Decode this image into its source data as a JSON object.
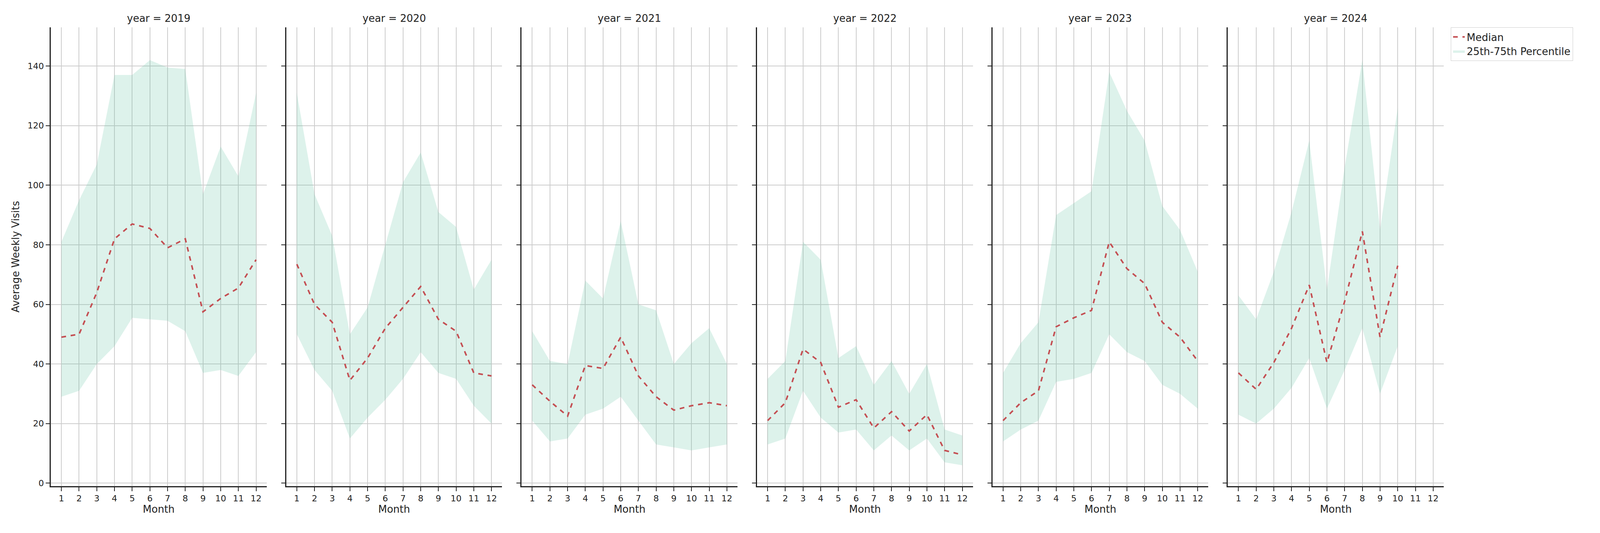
{
  "chart_data": [
    {
      "type": "line",
      "title": "year = 2019",
      "x_label": "Month",
      "y_label": "Average Weekly Visits",
      "x": [
        1,
        2,
        3,
        4,
        5,
        6,
        7,
        8,
        9,
        10,
        11,
        12
      ],
      "xlim": [
        0.4,
        12.6
      ],
      "xticks": [
        1,
        2,
        3,
        4,
        5,
        6,
        7,
        8,
        9,
        10,
        11,
        12
      ],
      "ylim": [
        -1,
        153
      ],
      "yticks": [
        0,
        20,
        40,
        60,
        80,
        100,
        120,
        140
      ],
      "grid": true,
      "series": [
        {
          "name": "Median",
          "color": "#c44e52",
          "line_style": "dashed",
          "values": [
            49,
            50,
            64,
            82,
            87,
            85.5,
            79,
            82,
            57.5,
            62,
            65.5,
            75
          ]
        },
        {
          "name": "25th-75th Percentile",
          "type": "area",
          "color": "#66c2a5",
          "lower": [
            29,
            31,
            40,
            46,
            55.5,
            55,
            54.5,
            51,
            37,
            38,
            36,
            44
          ],
          "upper": [
            81,
            95,
            107,
            137,
            137,
            142,
            139.5,
            139,
            97,
            113,
            103,
            131
          ]
        }
      ]
    },
    {
      "type": "line",
      "title": "year = 2020",
      "x_label": "Month",
      "x": [
        1,
        2,
        3,
        4,
        5,
        6,
        7,
        8,
        9,
        10,
        11,
        12
      ],
      "xlim": [
        0.4,
        12.6
      ],
      "xticks": [
        1,
        2,
        3,
        4,
        5,
        6,
        7,
        8,
        9,
        10,
        11,
        12
      ],
      "ylim": [
        -1,
        153
      ],
      "yticks": [
        0,
        20,
        40,
        60,
        80,
        100,
        120,
        140
      ],
      "grid": true,
      "tick_labels": "x",
      "series": [
        {
          "name": "Median",
          "color": "#c44e52",
          "line_style": "dashed",
          "values": [
            73.5,
            60,
            54,
            34.5,
            42,
            52,
            59,
            66,
            55,
            51,
            37,
            36
          ]
        },
        {
          "name": "25th-75th Percentile",
          "type": "area",
          "color": "#66c2a5",
          "lower": [
            50,
            38,
            31,
            15,
            22,
            28,
            35,
            44,
            37,
            35,
            26,
            20
          ],
          "upper": [
            131,
            97,
            83,
            50,
            59,
            80,
            101,
            111,
            91,
            86,
            65,
            75
          ]
        }
      ]
    },
    {
      "type": "line",
      "title": "year = 2021",
      "x_label": "Month",
      "x": [
        1,
        2,
        3,
        4,
        5,
        6,
        7,
        8,
        9,
        10,
        11,
        12
      ],
      "xlim": [
        0.4,
        12.6
      ],
      "xticks": [
        1,
        2,
        3,
        4,
        5,
        6,
        7,
        8,
        9,
        10,
        11,
        12
      ],
      "ylim": [
        -1,
        153
      ],
      "yticks": [
        0,
        20,
        40,
        60,
        80,
        100,
        120,
        140
      ],
      "grid": true,
      "tick_labels": "x",
      "series": [
        {
          "name": "Median",
          "color": "#c44e52",
          "line_style": "dashed",
          "values": [
            33,
            27.5,
            22.5,
            39.5,
            38.5,
            49,
            36,
            29,
            24.5,
            26,
            27,
            26
          ]
        },
        {
          "name": "25th-75th Percentile",
          "type": "area",
          "color": "#66c2a5",
          "lower": [
            21,
            14,
            15,
            23,
            25,
            29,
            21,
            13,
            12,
            11,
            12,
            13
          ],
          "upper": [
            51,
            41,
            40,
            68,
            62,
            88,
            60,
            58,
            40,
            47,
            52,
            40
          ]
        }
      ]
    },
    {
      "type": "line",
      "title": "year = 2022",
      "x_label": "Month",
      "x": [
        1,
        2,
        3,
        4,
        5,
        6,
        7,
        8,
        9,
        10,
        11,
        12
      ],
      "xlim": [
        0.4,
        12.6
      ],
      "xticks": [
        1,
        2,
        3,
        4,
        5,
        6,
        7,
        8,
        9,
        10,
        11,
        12
      ],
      "ylim": [
        -1,
        153
      ],
      "yticks": [
        0,
        20,
        40,
        60,
        80,
        100,
        120,
        140
      ],
      "grid": true,
      "tick_labels": "x",
      "series": [
        {
          "name": "Median",
          "color": "#c44e52",
          "line_style": "dashed",
          "values": [
            21,
            27,
            45,
            40.5,
            25.5,
            28,
            18.5,
            24,
            17.5,
            23,
            11,
            9.5
          ]
        },
        {
          "name": "25th-75th Percentile",
          "type": "area",
          "color": "#66c2a5",
          "lower": [
            13,
            15,
            31,
            22,
            17,
            18,
            11,
            16,
            11,
            15,
            7,
            6
          ],
          "upper": [
            35,
            41,
            81,
            75,
            42,
            46,
            33,
            41,
            30,
            40,
            18,
            16
          ]
        }
      ]
    },
    {
      "type": "line",
      "title": "year = 2023",
      "x_label": "Month",
      "x": [
        1,
        2,
        3,
        4,
        5,
        6,
        7,
        8,
        9,
        10,
        11,
        12
      ],
      "xlim": [
        0.4,
        12.6
      ],
      "xticks": [
        1,
        2,
        3,
        4,
        5,
        6,
        7,
        8,
        9,
        10,
        11,
        12
      ],
      "ylim": [
        -1,
        153
      ],
      "yticks": [
        0,
        20,
        40,
        60,
        80,
        100,
        120,
        140
      ],
      "grid": true,
      "tick_labels": "x",
      "series": [
        {
          "name": "Median",
          "color": "#c44e52",
          "line_style": "dashed",
          "values": [
            21,
            27,
            31,
            52.5,
            55.5,
            58,
            81,
            72,
            67,
            54,
            49,
            41
          ]
        },
        {
          "name": "25th-75th Percentile",
          "type": "area",
          "color": "#66c2a5",
          "lower": [
            14,
            18,
            21,
            34,
            35,
            37,
            50,
            44,
            41,
            33,
            30,
            25
          ],
          "upper": [
            37,
            47,
            54,
            90,
            94,
            98,
            138,
            125,
            115,
            93,
            85,
            71
          ]
        }
      ]
    },
    {
      "type": "line",
      "title": "year = 2024",
      "x_label": "Month",
      "x": [
        1,
        2,
        3,
        4,
        5,
        6,
        7,
        8,
        9,
        10,
        11,
        12
      ],
      "xlim": [
        0.4,
        12.6
      ],
      "xticks": [
        1,
        2,
        3,
        4,
        5,
        6,
        7,
        8,
        9,
        10,
        11,
        12
      ],
      "ylim": [
        -1,
        153
      ],
      "yticks": [
        0,
        20,
        40,
        60,
        80,
        100,
        120,
        140
      ],
      "grid": true,
      "tick_labels": "x",
      "legend": "upper right",
      "series": [
        {
          "name": "Median",
          "color": "#c44e52",
          "line_style": "dashed",
          "values": [
            37,
            31.5,
            40.5,
            52,
            66.5,
            40.5,
            61,
            84.5,
            49,
            73,
            null,
            null
          ]
        },
        {
          "name": "25th-75th Percentile",
          "type": "area",
          "color": "#66c2a5",
          "lower": [
            23,
            20,
            25,
            32,
            42,
            25,
            38,
            52,
            30,
            46,
            null,
            null
          ],
          "upper": [
            63,
            55,
            71,
            91,
            115,
            65,
            106,
            142,
            85,
            126,
            null,
            null
          ]
        }
      ]
    }
  ]
}
